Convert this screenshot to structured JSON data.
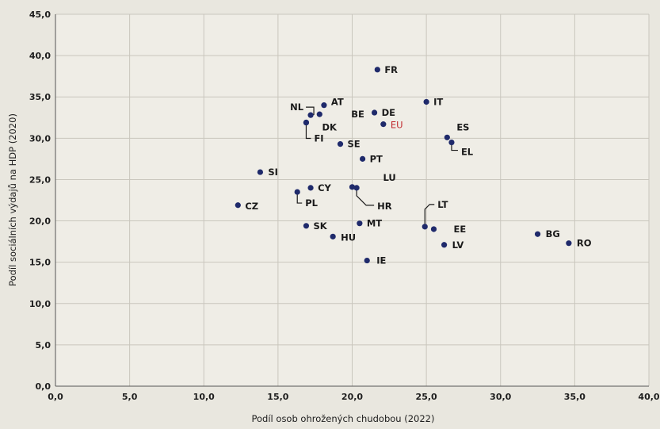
{
  "chart_data": {
    "type": "scatter",
    "xlabel": "Podíl osob ohrožených chudobou (2022)",
    "ylabel": "Podíl sociálních výdajů na HDP (2020)",
    "xlim": [
      0,
      40
    ],
    "ylim": [
      0,
      45
    ],
    "x_ticks": [
      "0,0",
      "5,0",
      "10,0",
      "15,0",
      "20,0",
      "25,0",
      "30,0",
      "35,0",
      "40,0"
    ],
    "y_ticks": [
      "0,0",
      "5,0",
      "10,0",
      "15,0",
      "20,0",
      "25,0",
      "30,0",
      "35,0",
      "40,0",
      "45,0"
    ],
    "grid": true,
    "point_color": "#1f2a6b",
    "highlight_color": "#c0282d",
    "points": [
      {
        "label": "FR",
        "x": 21.7,
        "y": 38.3
      },
      {
        "label": "NL",
        "x": 17.2,
        "y": 32.8
      },
      {
        "label": "AT",
        "x": 18.1,
        "y": 34.0
      },
      {
        "label": "BE",
        "x": 17.8,
        "y": 32.9
      },
      {
        "label": "DK",
        "x": 16.9,
        "y": 31.9
      },
      {
        "label": "FI",
        "x": 16.9,
        "y": 31.9
      },
      {
        "label": "DE",
        "x": 21.5,
        "y": 33.1
      },
      {
        "label": "EU",
        "x": 22.1,
        "y": 31.7,
        "highlight": true
      },
      {
        "label": "IT",
        "x": 25.0,
        "y": 34.4
      },
      {
        "label": "ES",
        "x": 26.4,
        "y": 30.1
      },
      {
        "label": "EL",
        "x": 26.7,
        "y": 29.5
      },
      {
        "label": "SE",
        "x": 19.2,
        "y": 29.3
      },
      {
        "label": "PT",
        "x": 20.7,
        "y": 27.5
      },
      {
        "label": "SI",
        "x": 13.8,
        "y": 25.9
      },
      {
        "label": "LU",
        "x": 20.0,
        "y": 24.1
      },
      {
        "label": "HR",
        "x": 20.3,
        "y": 24.0
      },
      {
        "label": "CY",
        "x": 17.2,
        "y": 24.0
      },
      {
        "label": "PL",
        "x": 16.3,
        "y": 23.5
      },
      {
        "label": "CZ",
        "x": 12.3,
        "y": 21.9
      },
      {
        "label": "LT",
        "x": 24.9,
        "y": 19.3
      },
      {
        "label": "EE",
        "x": 25.5,
        "y": 19.0
      },
      {
        "label": "SK",
        "x": 16.9,
        "y": 19.4
      },
      {
        "label": "MT",
        "x": 20.5,
        "y": 19.7
      },
      {
        "label": "HU",
        "x": 18.7,
        "y": 18.1
      },
      {
        "label": "LV",
        "x": 26.2,
        "y": 17.1
      },
      {
        "label": "BG",
        "x": 32.5,
        "y": 18.4
      },
      {
        "label": "RO",
        "x": 34.6,
        "y": 17.3
      },
      {
        "label": "IE",
        "x": 21.0,
        "y": 15.2
      }
    ]
  }
}
